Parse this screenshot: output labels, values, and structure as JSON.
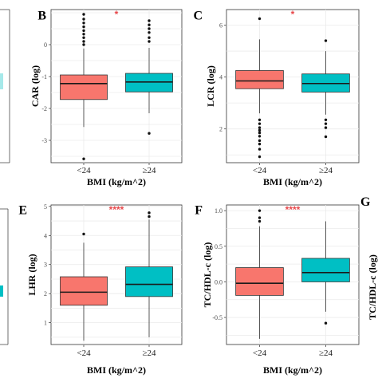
{
  "colors": {
    "group1": "#F8766D",
    "group2": "#00BFC4",
    "significance": "#E8474A"
  },
  "chart_data": [
    {
      "panel": "B",
      "type": "box",
      "categories": [
        "<24",
        "≥24"
      ],
      "xlabel": "BMI (kg/m^2)",
      "ylabel": "CAR (log)",
      "significance": "*",
      "ylim": [
        -3.7,
        1.1
      ],
      "yticks": [
        -3,
        -2,
        -1,
        0
      ],
      "ytick_labels": [
        "-3",
        "-2",
        "-1",
        "0"
      ],
      "boxes": [
        {
          "q1": -1.72,
          "median": -1.22,
          "q3": -0.95,
          "whisker_low": -2.58,
          "whisker_high": -0.12,
          "outliers": [
            0.95,
            0.8,
            0.68,
            0.56,
            0.44,
            0.33,
            0.22,
            0.1,
            0.0,
            -3.58
          ]
        },
        {
          "q1": -1.48,
          "median": -1.17,
          "q3": -0.9,
          "whisker_low": -2.15,
          "whisker_high": -0.1,
          "outliers": [
            0.75,
            0.62,
            0.5,
            0.38,
            0.22,
            0.1,
            -2.78
          ]
        }
      ]
    },
    {
      "panel": "C",
      "type": "box",
      "categories": [
        "<24",
        "≥24"
      ],
      "xlabel": "BMI (kg/m^2)",
      "ylabel": "LCR (log)",
      "significance": "*",
      "ylim": [
        0.7,
        6.6
      ],
      "yticks": [
        2,
        4,
        6
      ],
      "ytick_labels": [
        "2",
        "4",
        "6"
      ],
      "boxes": [
        {
          "q1": 3.55,
          "median": 3.85,
          "q3": 4.25,
          "whisker_low": 2.6,
          "whisker_high": 5.45,
          "outliers": [
            6.25,
            2.35,
            2.2,
            2.05,
            1.95,
            1.85,
            1.72,
            1.55,
            1.42,
            1.22,
            0.93
          ]
        },
        {
          "q1": 3.42,
          "median": 3.75,
          "q3": 4.12,
          "whisker_low": 2.55,
          "whisker_high": 5.0,
          "outliers": [
            5.4,
            2.35,
            2.2,
            2.05,
            1.7
          ]
        }
      ]
    },
    {
      "panel": "E",
      "type": "box",
      "categories": [
        "<24",
        "≥24"
      ],
      "xlabel": "BMI (kg/m^2)",
      "ylabel": "LHR (log)",
      "significance": "****",
      "ylim": [
        0.25,
        5.05
      ],
      "yticks": [
        1,
        2,
        3,
        4,
        5
      ],
      "ytick_labels": [
        "1",
        "2",
        "3",
        "4",
        "5"
      ],
      "boxes": [
        {
          "q1": 1.6,
          "median": 2.05,
          "q3": 2.58,
          "whisker_low": 0.38,
          "whisker_high": 3.75,
          "outliers": [
            4.05
          ]
        },
        {
          "q1": 1.9,
          "median": 2.32,
          "q3": 2.92,
          "whisker_low": 0.5,
          "whisker_high": 4.55,
          "outliers": [
            4.78,
            4.65
          ]
        }
      ]
    },
    {
      "panel": "F",
      "type": "box",
      "categories": [
        "<24",
        "≥24"
      ],
      "xlabel": "BMI (kg/m^2)",
      "ylabel": "TC/HDL-c (log)",
      "significance": "****",
      "ylim": [
        -0.88,
        1.08
      ],
      "yticks": [
        -0.5,
        0.0,
        0.5,
        1.0
      ],
      "ytick_labels": [
        "-0.5",
        "0.0",
        "0.5",
        "1.0"
      ],
      "boxes": [
        {
          "q1": -0.19,
          "median": -0.02,
          "q3": 0.2,
          "whisker_low": -0.8,
          "whisker_high": 0.78,
          "outliers": [
            1.0,
            0.9,
            0.85
          ]
        },
        {
          "q1": 0.0,
          "median": 0.13,
          "q3": 0.33,
          "whisker_low": -0.42,
          "whisker_high": 0.85,
          "outliers": [
            -0.58
          ]
        }
      ]
    }
  ],
  "panel_letters": {
    "g": "G"
  },
  "cut_axis_label_g": "TC/HDL-c (log)"
}
